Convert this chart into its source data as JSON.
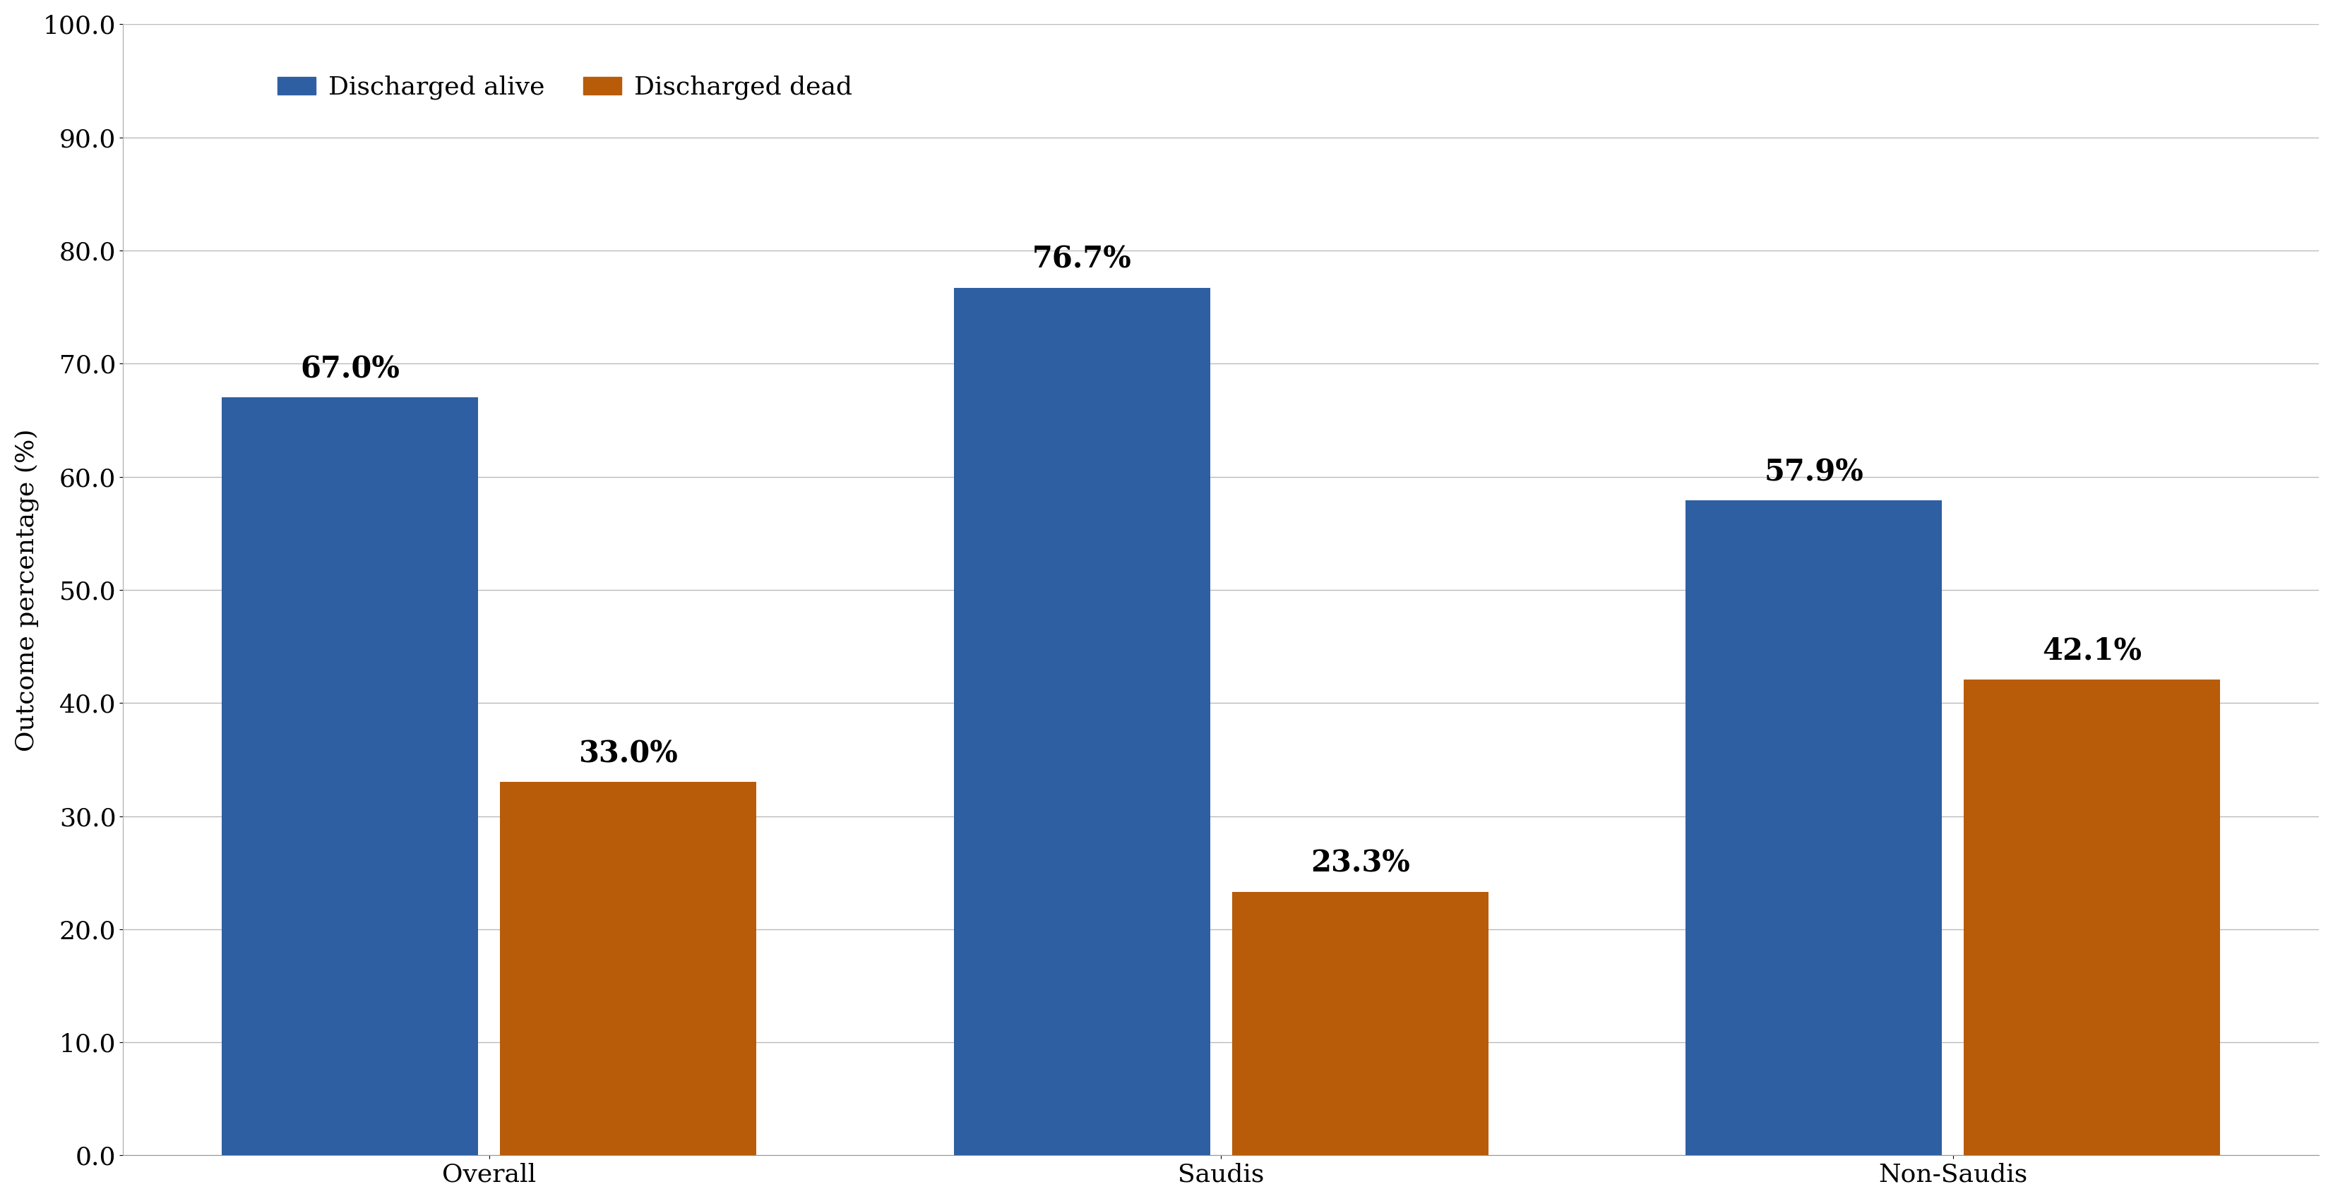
{
  "categories": [
    "Overall",
    "Saudis",
    "Non-Saudis"
  ],
  "discharged_alive": [
    67.0,
    76.7,
    57.9
  ],
  "discharged_dead": [
    33.0,
    23.3,
    42.1
  ],
  "alive_labels": [
    "67.0%",
    "76.7%",
    "57.9%"
  ],
  "dead_labels": [
    "33.0%",
    "23.3%",
    "42.1%"
  ],
  "bar_color_alive": "#2E5FA3",
  "bar_color_dead": "#B85C0A",
  "ylabel": "Outcome percentage (%)",
  "ylim": [
    0,
    100
  ],
  "yticks": [
    0.0,
    10.0,
    20.0,
    30.0,
    40.0,
    50.0,
    60.0,
    70.0,
    80.0,
    90.0,
    100.0
  ],
  "legend_alive": "Discharged alive",
  "legend_dead": "Discharged dead",
  "bar_width": 0.35,
  "background_color": "#ffffff",
  "grid_color": "#bbbbbb",
  "tick_fontsize": 26,
  "ylabel_fontsize": 26,
  "legend_fontsize": 26,
  "annotation_fontsize": 30
}
